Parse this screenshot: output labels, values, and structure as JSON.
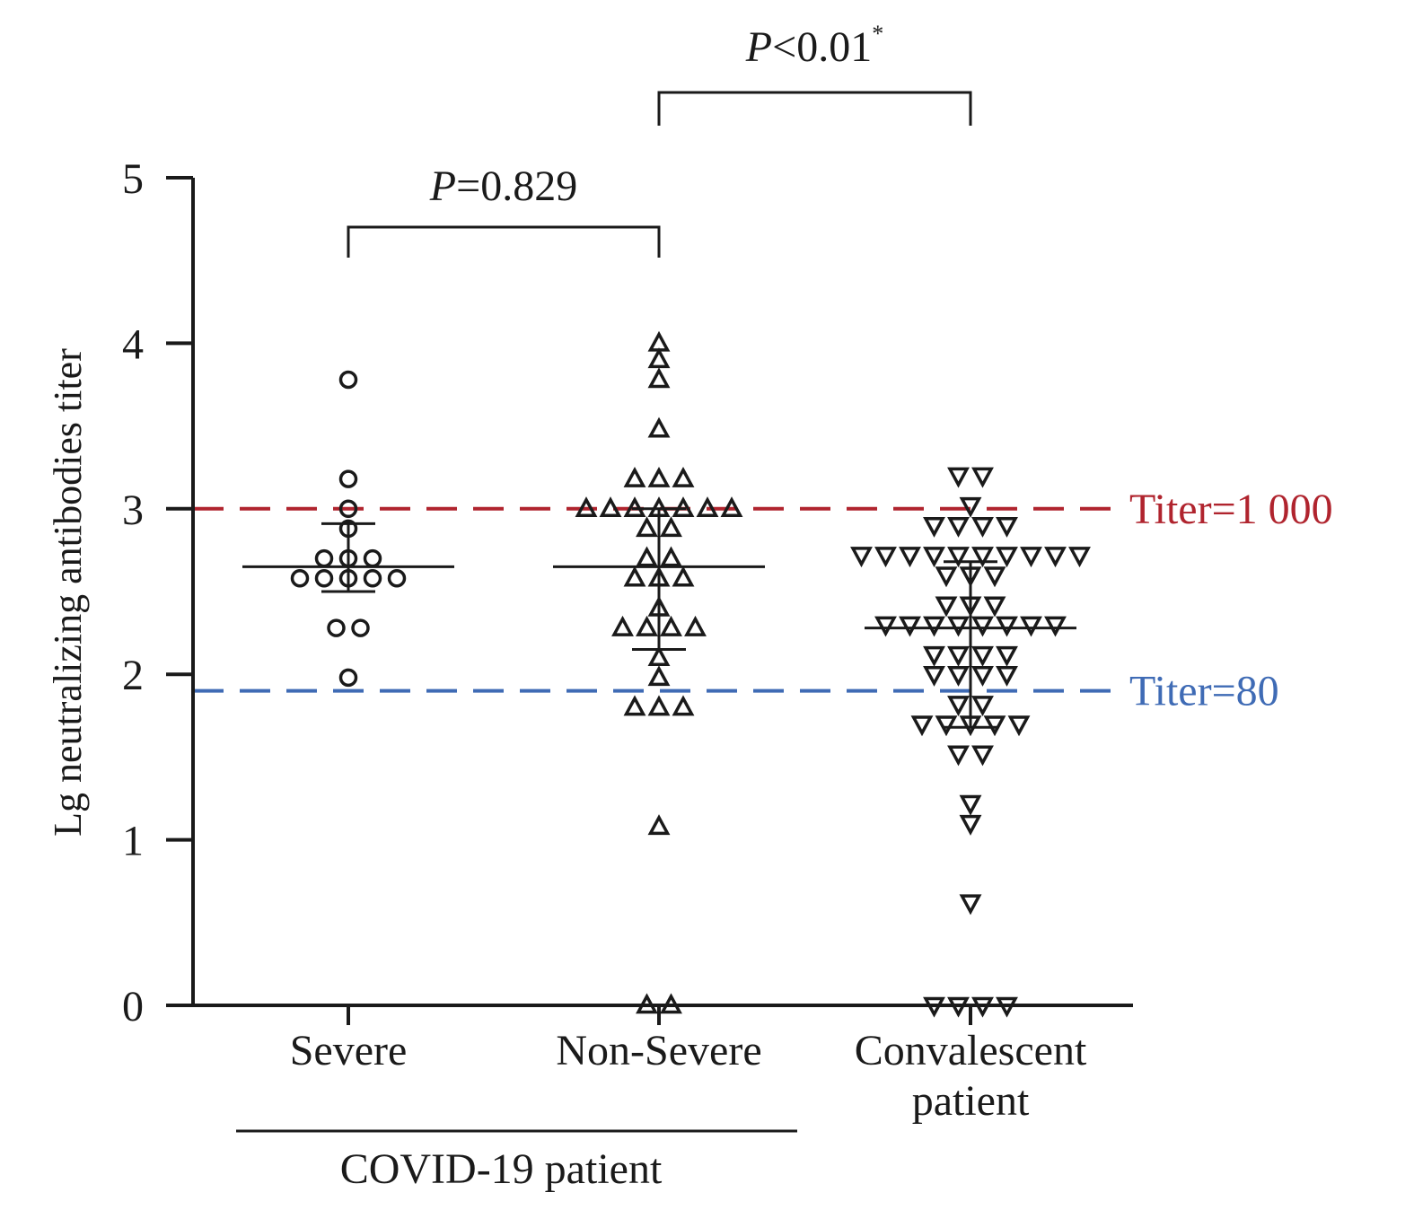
{
  "chart_data": {
    "type": "scatter",
    "title": "",
    "xlabel": "",
    "ylabel": "Lg neutralizing antibodies titer",
    "ylim": [
      0,
      5
    ],
    "yticks": [
      "0",
      "1",
      "2",
      "3",
      "4",
      "5"
    ],
    "grid": false,
    "categories": [
      {
        "lines": [
          "Severe"
        ]
      },
      {
        "lines": [
          "Non-Severe"
        ]
      },
      {
        "lines": [
          "Convalescent",
          "patient"
        ]
      }
    ],
    "group_label": "COVID-19 patient",
    "series": [
      {
        "marker": "circle",
        "category": 0,
        "values": [
          3.78,
          3.18,
          3.0,
          2.88,
          2.7,
          2.7,
          2.7,
          2.58,
          2.58,
          2.58,
          2.58,
          2.58,
          2.28,
          2.28,
          1.98
        ],
        "median": 2.65,
        "iqr": [
          2.5,
          2.91
        ]
      },
      {
        "marker": "triangle-up",
        "category": 1,
        "values": [
          4.0,
          3.9,
          3.78,
          3.48,
          3.18,
          3.18,
          3.18,
          3.0,
          3.0,
          3.0,
          3.0,
          3.0,
          3.0,
          3.0,
          2.88,
          2.88,
          2.7,
          2.7,
          2.58,
          2.58,
          2.58,
          2.4,
          2.28,
          2.28,
          2.28,
          2.28,
          2.1,
          1.98,
          1.8,
          1.8,
          1.8,
          1.08,
          0.0,
          0.0
        ],
        "median": 2.65,
        "iqr": [
          2.15,
          3.0
        ]
      },
      {
        "marker": "triangle-down",
        "category": 2,
        "values": [
          3.2,
          3.2,
          3.02,
          2.9,
          2.9,
          2.9,
          2.9,
          2.72,
          2.72,
          2.72,
          2.72,
          2.72,
          2.72,
          2.72,
          2.72,
          2.72,
          2.72,
          2.6,
          2.6,
          2.6,
          2.42,
          2.42,
          2.42,
          2.3,
          2.3,
          2.3,
          2.3,
          2.3,
          2.3,
          2.3,
          2.3,
          2.12,
          2.12,
          2.12,
          2.12,
          2.0,
          2.0,
          2.0,
          2.0,
          1.82,
          1.82,
          1.7,
          1.7,
          1.7,
          1.7,
          1.7,
          1.52,
          1.52,
          1.22,
          1.1,
          0.62,
          0.0,
          0.0,
          0.0,
          0.0
        ],
        "median": 2.28,
        "iqr": [
          1.68,
          2.68
        ]
      }
    ],
    "reference_lines": [
      {
        "y": 3.0,
        "label": "Titer=1 000",
        "color": "#b0242e"
      },
      {
        "y": 1.9,
        "label": "Titer=80",
        "color": "#3f6bb5"
      }
    ],
    "comparisons": [
      {
        "from": 0,
        "to": 1,
        "italic": "P",
        "rest": "=0.829",
        "sup": ""
      },
      {
        "from": 1,
        "to": 2,
        "italic": "P",
        "rest": "<0.01",
        "sup": "*"
      }
    ]
  }
}
